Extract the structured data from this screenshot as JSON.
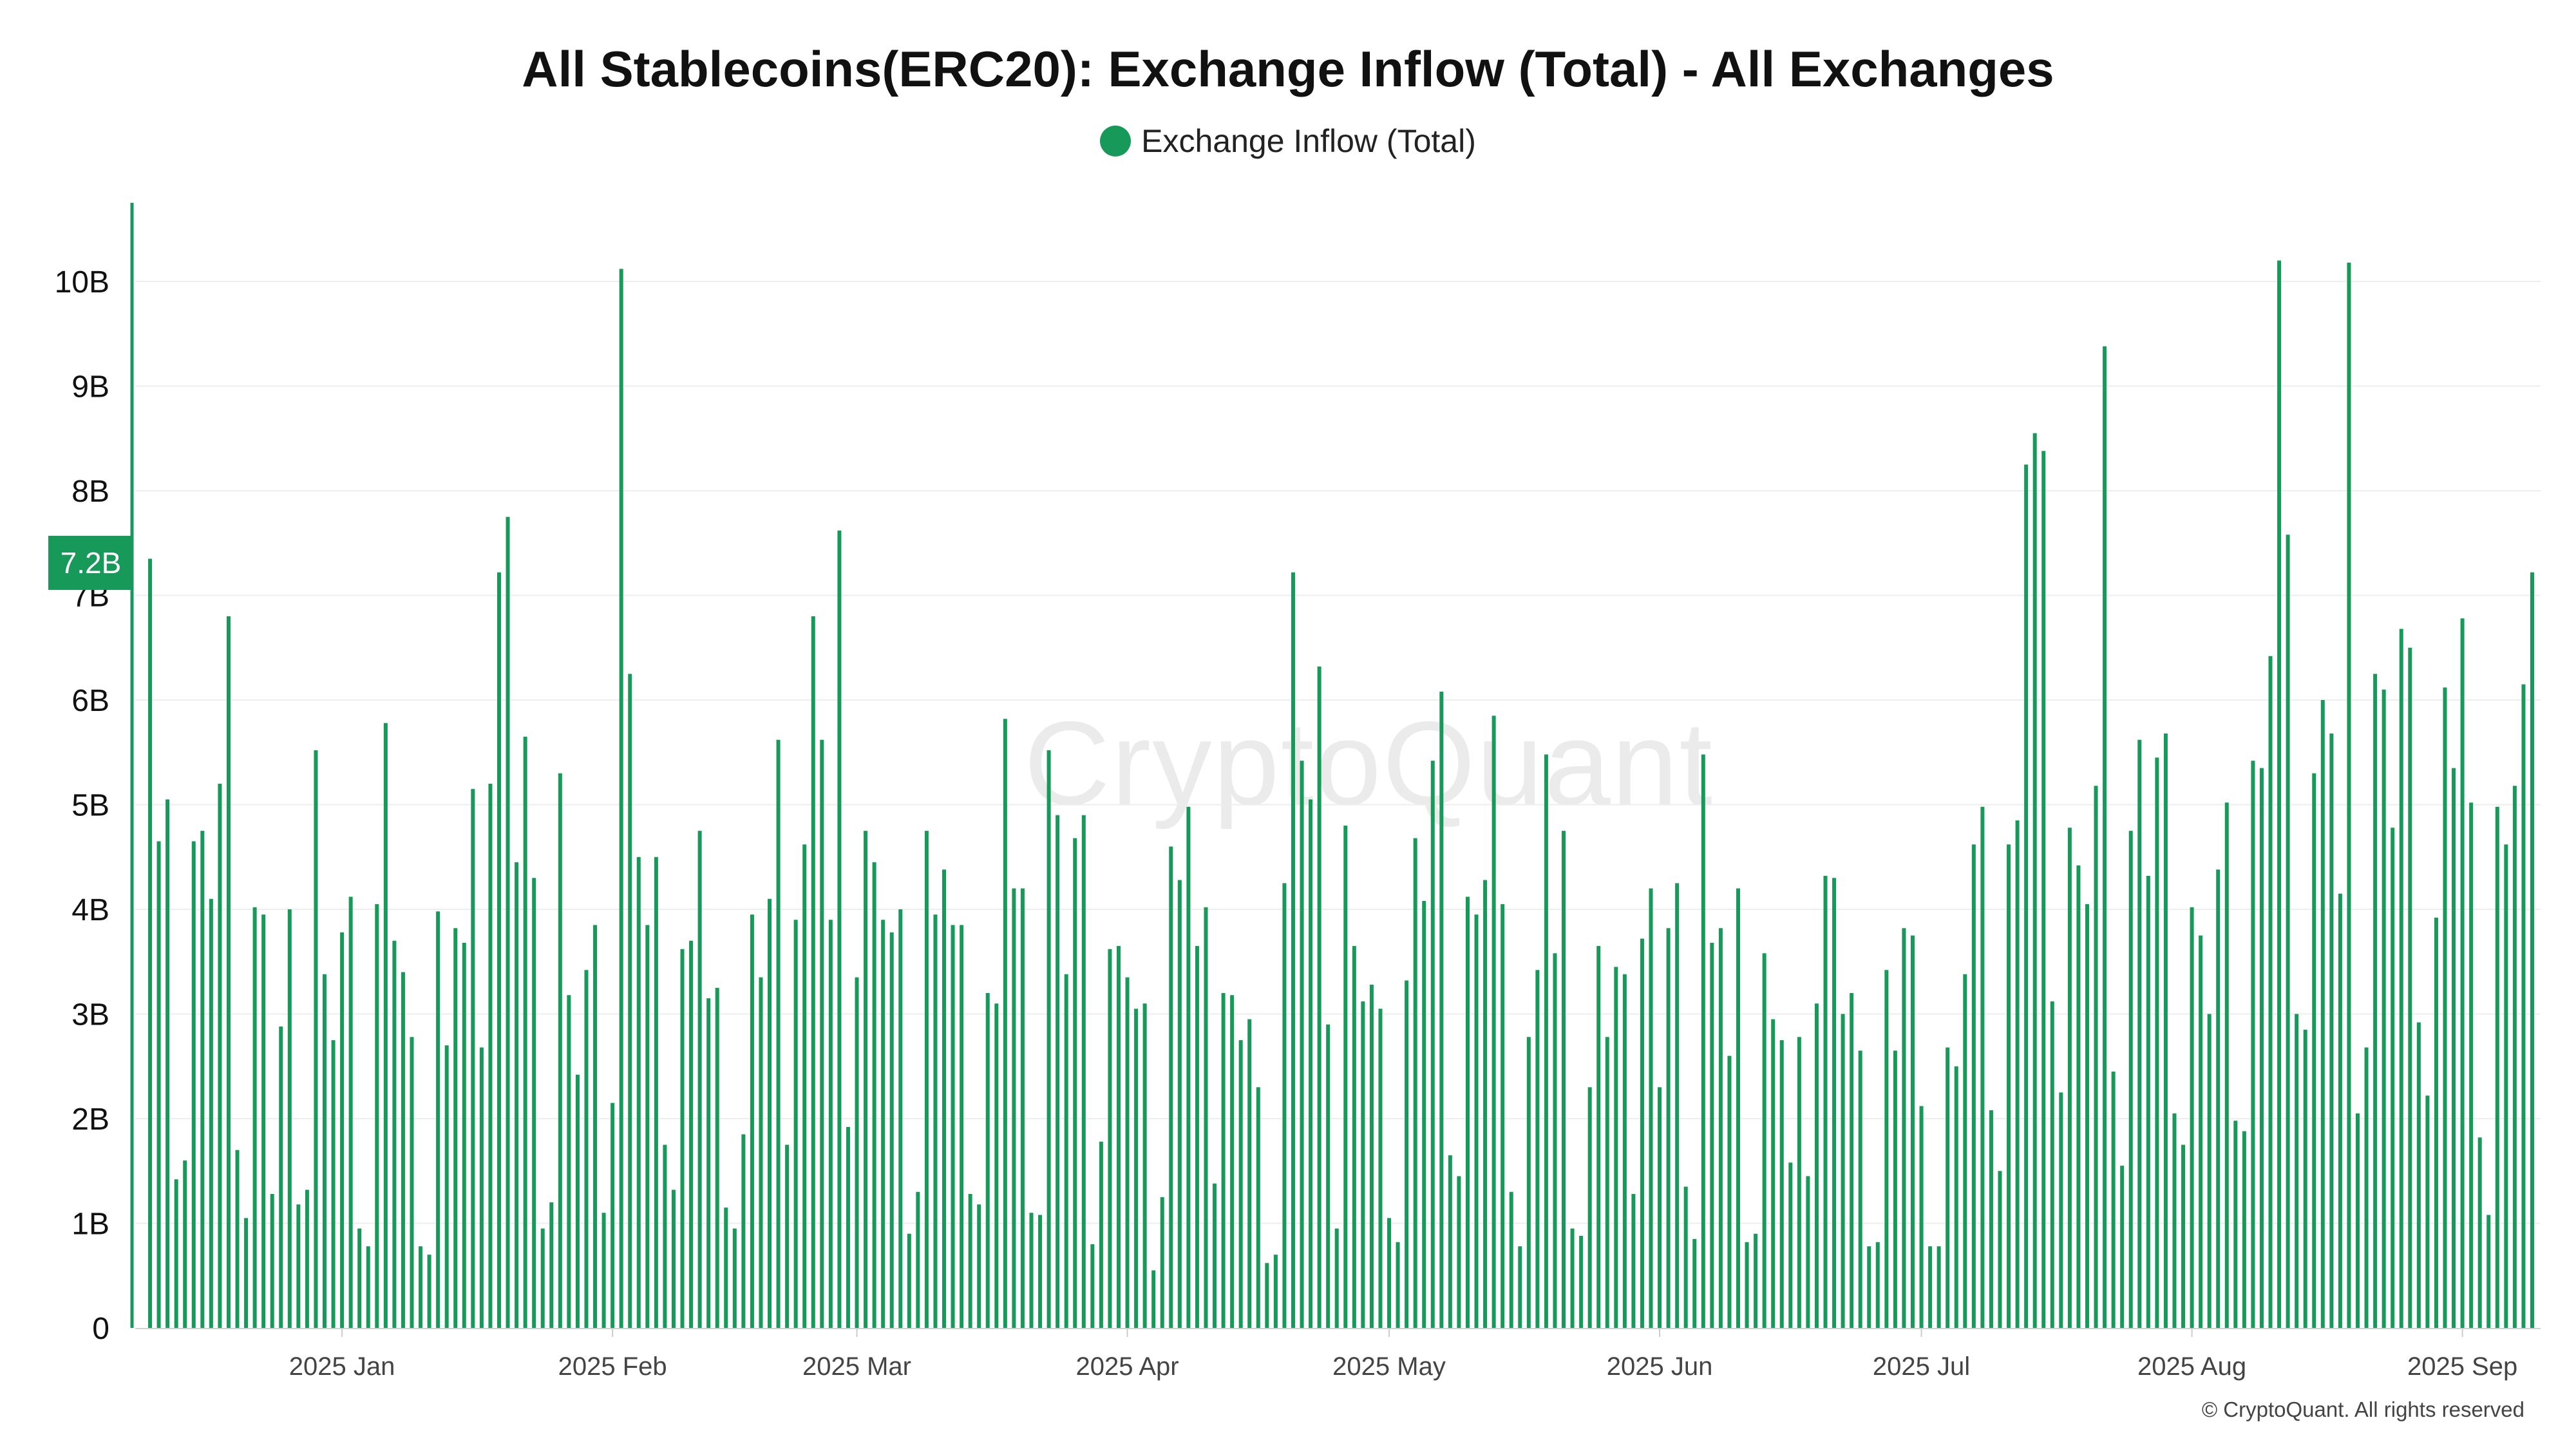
{
  "title": "All Stablecoins(ERC20): Exchange Inflow (Total) - All Exchanges",
  "legend_label": "Exchange Inflow (Total)",
  "current_value_label": "7.2B",
  "watermark": "CryptoQuant",
  "footer": "© CryptoQuant. All rights reserved",
  "colors": {
    "bar": "#17995a",
    "badge": "#17995a",
    "grid": "#eeeeee",
    "axis": "#17995a"
  },
  "chart_data": {
    "type": "bar",
    "title": "All Stablecoins(ERC20): Exchange Inflow (Total) - All Exchanges",
    "xlabel": "",
    "ylabel": "",
    "ylim": [
      0,
      10.7
    ],
    "y_unit": "B",
    "y_ticks": [
      0,
      1,
      2,
      3,
      4,
      5,
      6,
      7,
      8,
      9,
      10
    ],
    "y_tick_labels": [
      "0",
      "1B",
      "2B",
      "3B",
      "4B",
      "5B",
      "6B",
      "7B",
      "8B",
      "9B",
      "10B"
    ],
    "grid": true,
    "legend_position": "top-center",
    "x_tick_labels": [
      {
        "label": "2025 Jan",
        "index": 22
      },
      {
        "label": "2025 Feb",
        "index": 53
      },
      {
        "label": "2025 Mar",
        "index": 81
      },
      {
        "label": "2025 Apr",
        "index": 112
      },
      {
        "label": "2025 May",
        "index": 142
      },
      {
        "label": "2025 Jun",
        "index": 173
      },
      {
        "label": "2025 Jul",
        "index": 203
      },
      {
        "label": "2025 Aug",
        "index": 234
      },
      {
        "label": "2025 Sep",
        "index": 265
      }
    ],
    "series": [
      {
        "name": "Exchange Inflow (Total)",
        "values": [
          7.35,
          4.65,
          5.05,
          1.42,
          1.6,
          4.65,
          4.75,
          4.1,
          5.2,
          6.8,
          1.7,
          1.05,
          4.02,
          3.95,
          1.28,
          2.88,
          4.0,
          1.18,
          1.32,
          5.52,
          3.38,
          2.75,
          3.78,
          4.12,
          0.95,
          0.78,
          4.05,
          5.78,
          3.7,
          3.4,
          2.78,
          0.78,
          0.7,
          3.98,
          2.7,
          3.82,
          3.68,
          5.15,
          2.68,
          5.2,
          7.22,
          7.75,
          4.45,
          5.65,
          4.3,
          0.95,
          1.2,
          5.3,
          3.18,
          2.42,
          3.42,
          3.85,
          1.1,
          2.15,
          10.12,
          6.25,
          4.5,
          3.85,
          4.5,
          1.75,
          1.32,
          3.62,
          3.7,
          4.75,
          3.15,
          3.25,
          1.15,
          0.95,
          1.85,
          3.95,
          3.35,
          4.1,
          5.62,
          1.75,
          3.9,
          4.62,
          6.8,
          5.62,
          3.9,
          7.62,
          1.92,
          3.35,
          4.75,
          4.45,
          3.9,
          3.78,
          4.0,
          0.9,
          1.3,
          4.75,
          3.95,
          4.38,
          3.85,
          3.85,
          1.28,
          1.18,
          3.2,
          3.1,
          5.82,
          4.2,
          4.2,
          1.1,
          1.08,
          5.52,
          4.9,
          3.38,
          4.68,
          4.9,
          0.8,
          1.78,
          3.62,
          3.65,
          3.35,
          3.05,
          3.1,
          0.55,
          1.25,
          4.6,
          4.28,
          4.98,
          3.65,
          4.02,
          1.38,
          3.2,
          3.18,
          2.75,
          2.95,
          2.3,
          0.62,
          0.7,
          4.25,
          7.22,
          5.42,
          5.05,
          6.32,
          2.9,
          0.95,
          4.8,
          3.65,
          3.12,
          3.28,
          3.05,
          1.05,
          0.82,
          3.32,
          4.68,
          4.08,
          5.42,
          6.08,
          1.65,
          1.45,
          4.12,
          3.95,
          4.28,
          5.85,
          4.05,
          1.3,
          0.78,
          2.78,
          3.42,
          5.48,
          3.58,
          4.75,
          0.95,
          0.88,
          2.3,
          3.65,
          2.78,
          3.45,
          3.38,
          1.28,
          3.72,
          4.2,
          2.3,
          3.82,
          4.25,
          1.35,
          0.85,
          5.48,
          3.68,
          3.82,
          2.6,
          4.2,
          0.82,
          0.9,
          3.58,
          2.95,
          2.75,
          1.58,
          2.78,
          1.45,
          3.1,
          4.32,
          4.3,
          3.0,
          3.2,
          2.65,
          0.78,
          0.82,
          3.42,
          2.65,
          3.82,
          3.75,
          2.12,
          0.78,
          0.78,
          2.68,
          2.5,
          3.38,
          4.62,
          4.98,
          2.08,
          1.5,
          4.62,
          4.85,
          8.25,
          8.55,
          8.38,
          3.12,
          2.25,
          4.78,
          4.42,
          4.05,
          5.18,
          9.38,
          2.45,
          1.55,
          4.75,
          5.62,
          4.32,
          5.45,
          5.68,
          2.05,
          1.75,
          4.02,
          3.75,
          3.0,
          4.38,
          5.02,
          1.98,
          1.88,
          5.42,
          5.35,
          6.42,
          10.2,
          7.58,
          3.0,
          2.85,
          5.3,
          6.0,
          5.68,
          4.15,
          10.18,
          2.05,
          2.68,
          6.25,
          6.1,
          4.78,
          6.68,
          6.5,
          2.92,
          2.22,
          3.92,
          6.12,
          5.35,
          6.78,
          5.02,
          1.82,
          1.08,
          4.98,
          4.62,
          5.18,
          6.15,
          7.22
        ]
      }
    ]
  }
}
